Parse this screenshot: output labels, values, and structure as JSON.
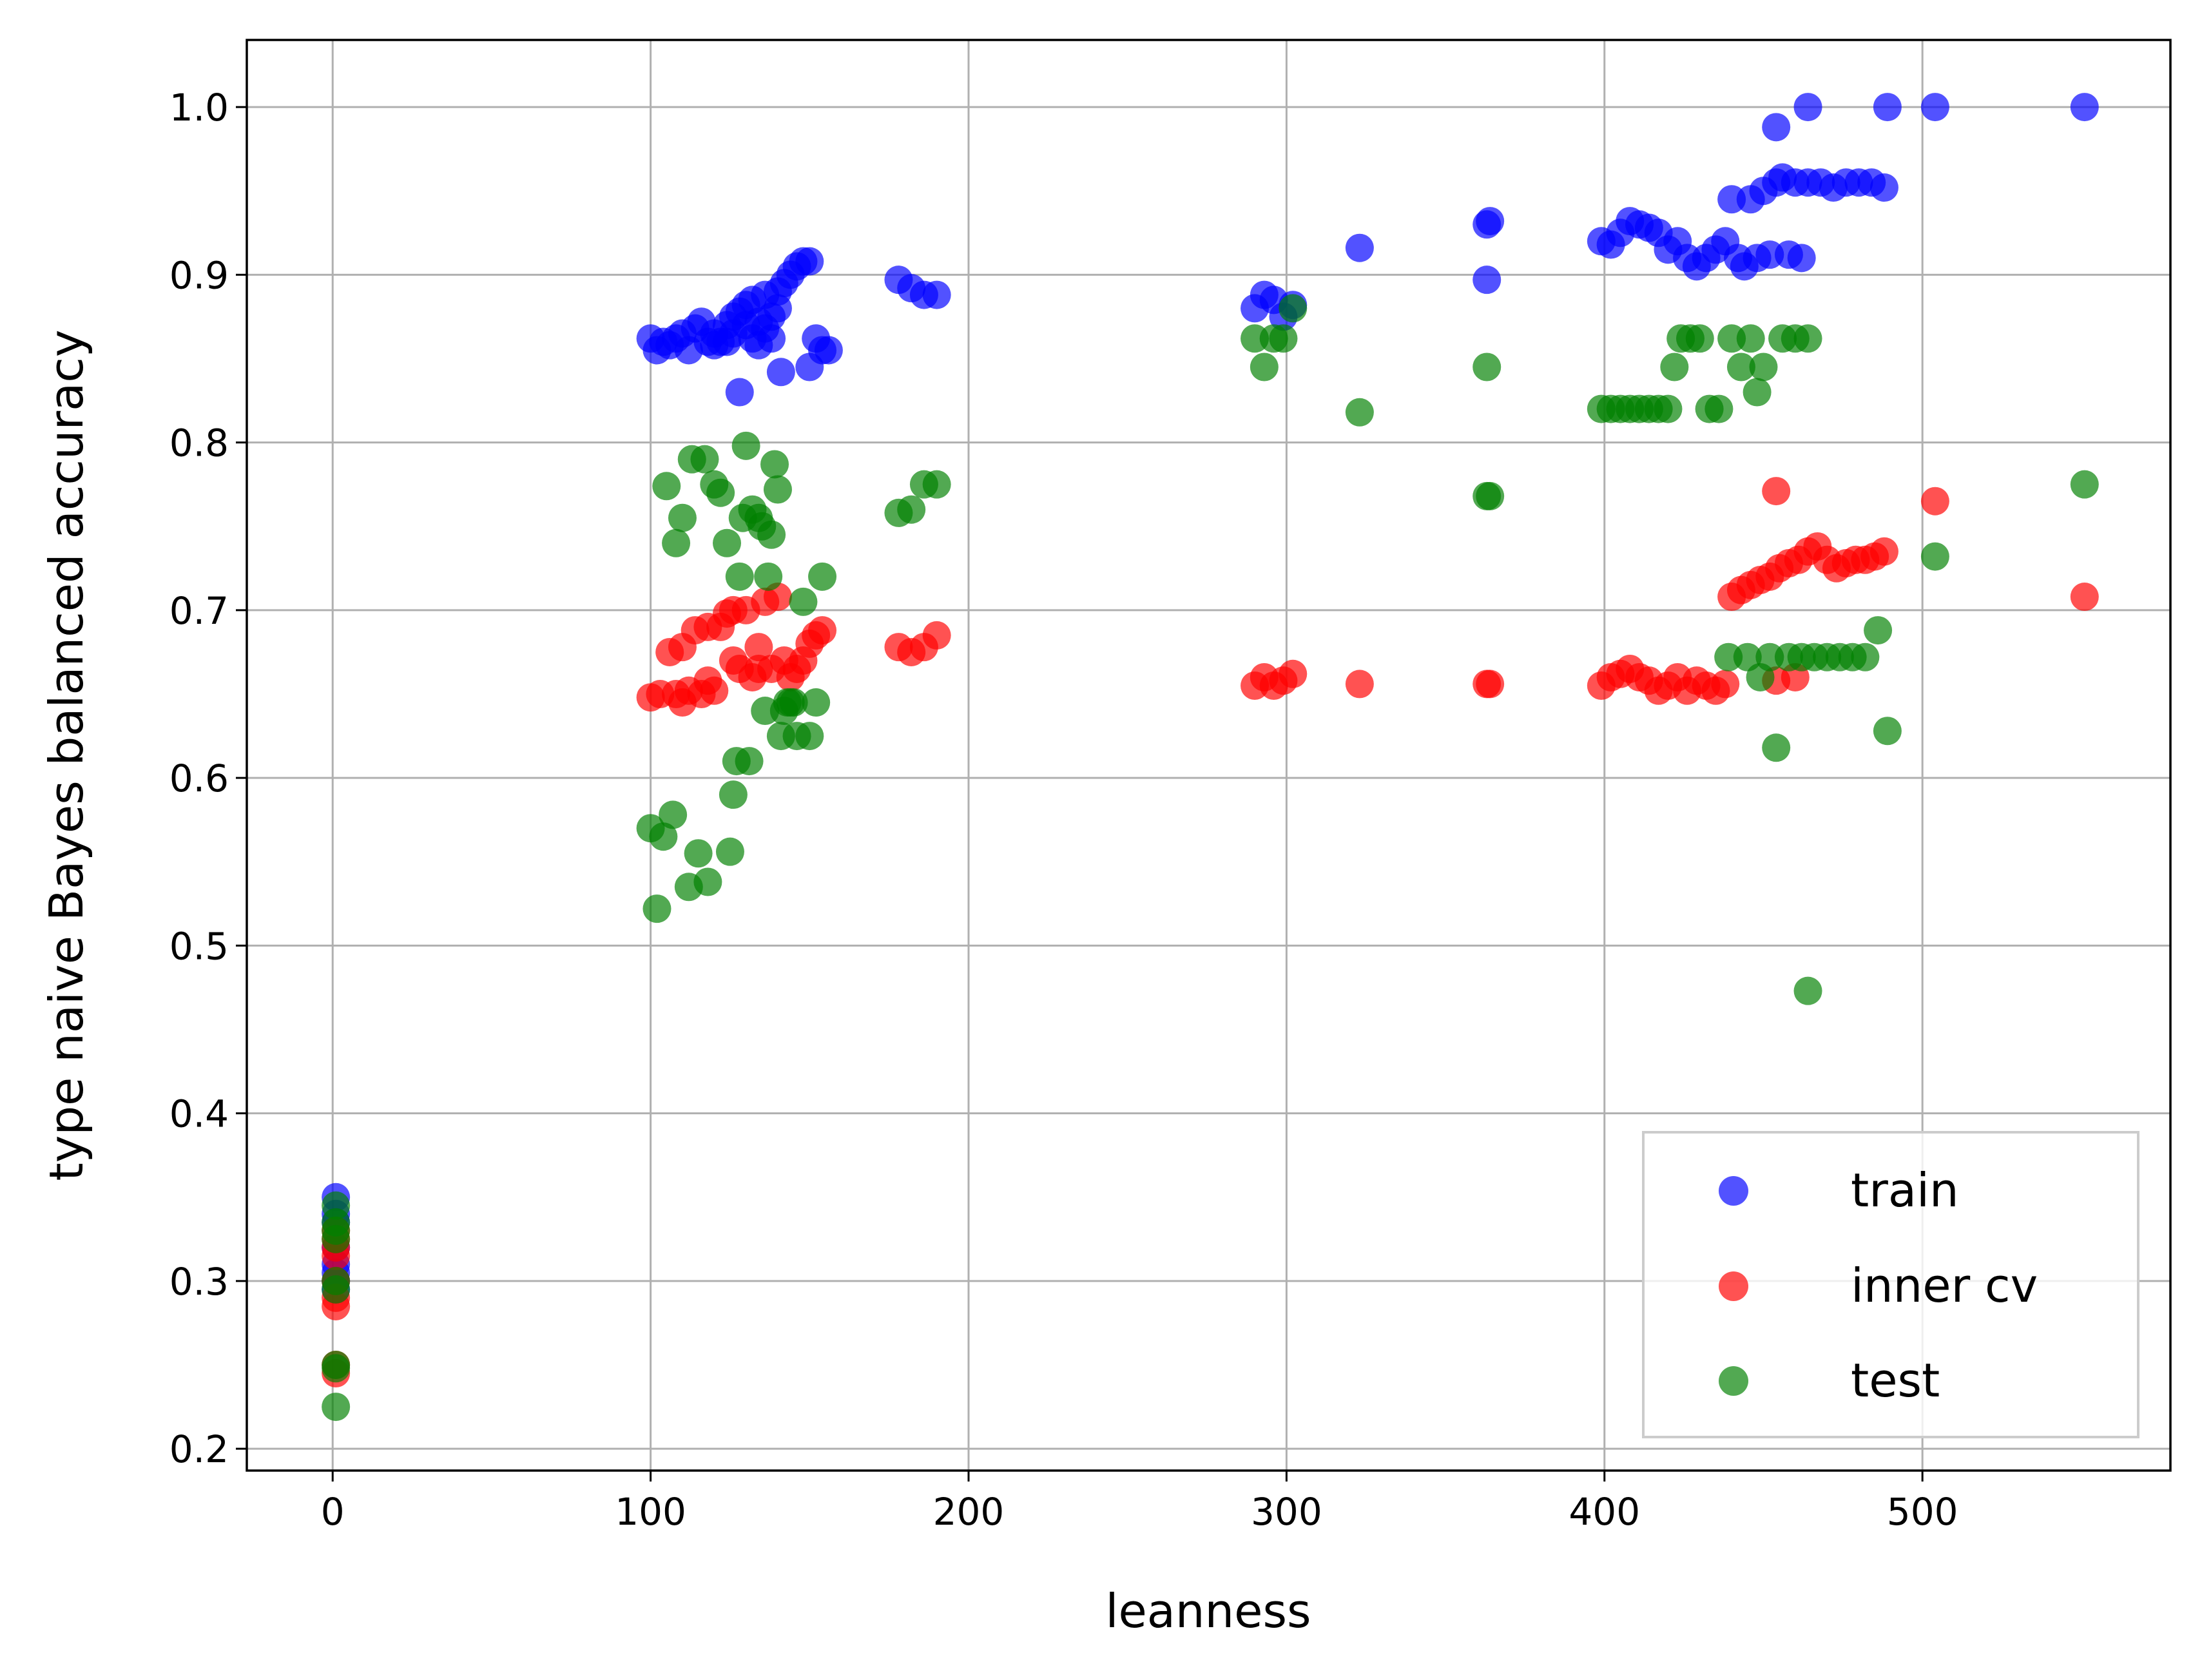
{
  "chart_data": {
    "type": "scatter",
    "title": "",
    "xlabel": "leanness",
    "ylabel": "type naive Bayes balanced accuracy",
    "xlim": [
      -27,
      578
    ],
    "ylim": [
      0.187,
      1.04
    ],
    "xticks": [
      0,
      100,
      200,
      300,
      400,
      500
    ],
    "yticks": [
      0.2,
      0.3,
      0.4,
      0.5,
      0.6,
      0.7,
      0.8,
      0.9,
      1.0
    ],
    "xtick_labels": [
      "0",
      "100",
      "200",
      "300",
      "400",
      "500"
    ],
    "ytick_labels": [
      "0.2",
      "0.3",
      "0.4",
      "0.5",
      "0.6",
      "0.7",
      "0.8",
      "0.9",
      "1.0"
    ],
    "grid": true,
    "legend_position": "lower-right",
    "series": [
      {
        "name": "train",
        "color": "#0000ff",
        "points": [
          [
            1,
            0.35
          ],
          [
            1,
            0.34
          ],
          [
            1,
            0.335
          ],
          [
            1,
            0.32
          ],
          [
            1,
            0.31
          ],
          [
            1,
            0.305
          ],
          [
            1,
            0.3
          ],
          [
            1,
            0.295
          ],
          [
            100,
            0.862
          ],
          [
            102,
            0.855
          ],
          [
            104,
            0.86
          ],
          [
            106,
            0.858
          ],
          [
            108,
            0.862
          ],
          [
            110,
            0.865
          ],
          [
            112,
            0.855
          ],
          [
            114,
            0.868
          ],
          [
            116,
            0.872
          ],
          [
            118,
            0.86
          ],
          [
            120,
            0.865
          ],
          [
            122,
            0.86
          ],
          [
            124,
            0.87
          ],
          [
            126,
            0.875
          ],
          [
            128,
            0.878
          ],
          [
            130,
            0.882
          ],
          [
            132,
            0.885
          ],
          [
            134,
            0.872
          ],
          [
            136,
            0.888
          ],
          [
            138,
            0.875
          ],
          [
            140,
            0.89
          ],
          [
            142,
            0.895
          ],
          [
            144,
            0.9
          ],
          [
            146,
            0.905
          ],
          [
            148,
            0.908
          ],
          [
            150,
            0.908
          ],
          [
            152,
            0.862
          ],
          [
            154,
            0.855
          ],
          [
            156,
            0.855
          ],
          [
            141,
            0.842
          ],
          [
            128,
            0.83
          ],
          [
            124,
            0.86
          ],
          [
            132,
            0.862
          ],
          [
            136,
            0.868
          ],
          [
            140,
            0.88
          ],
          [
            120,
            0.858
          ],
          [
            126,
            0.865
          ],
          [
            130,
            0.87
          ],
          [
            134,
            0.858
          ],
          [
            138,
            0.862
          ],
          [
            150,
            0.845
          ],
          [
            178,
            0.897
          ],
          [
            182,
            0.892
          ],
          [
            186,
            0.888
          ],
          [
            190,
            0.888
          ],
          [
            290,
            0.88
          ],
          [
            293,
            0.888
          ],
          [
            296,
            0.885
          ],
          [
            299,
            0.875
          ],
          [
            302,
            0.882
          ],
          [
            323,
            0.916
          ],
          [
            363,
            0.93
          ],
          [
            364,
            0.932
          ],
          [
            363,
            0.897
          ],
          [
            399,
            0.92
          ],
          [
            402,
            0.918
          ],
          [
            405,
            0.925
          ],
          [
            408,
            0.932
          ],
          [
            411,
            0.93
          ],
          [
            414,
            0.928
          ],
          [
            417,
            0.925
          ],
          [
            420,
            0.915
          ],
          [
            423,
            0.92
          ],
          [
            426,
            0.91
          ],
          [
            429,
            0.905
          ],
          [
            432,
            0.91
          ],
          [
            435,
            0.915
          ],
          [
            438,
            0.92
          ],
          [
            440,
            0.945
          ],
          [
            442,
            0.91
          ],
          [
            444,
            0.905
          ],
          [
            446,
            0.945
          ],
          [
            448,
            0.91
          ],
          [
            450,
            0.95
          ],
          [
            452,
            0.912
          ],
          [
            454,
            0.955
          ],
          [
            456,
            0.958
          ],
          [
            458,
            0.912
          ],
          [
            460,
            0.955
          ],
          [
            462,
            0.91
          ],
          [
            464,
            0.955
          ],
          [
            468,
            0.955
          ],
          [
            472,
            0.952
          ],
          [
            476,
            0.955
          ],
          [
            480,
            0.955
          ],
          [
            484,
            0.955
          ],
          [
            488,
            0.952
          ],
          [
            454,
            0.988
          ],
          [
            464,
            1.0
          ],
          [
            489,
            1.0
          ],
          [
            504,
            1.0
          ],
          [
            551,
            1.0
          ]
        ]
      },
      {
        "name": "inner cv",
        "color": "#ff0000",
        "points": [
          [
            1,
            0.33
          ],
          [
            1,
            0.325
          ],
          [
            1,
            0.32
          ],
          [
            1,
            0.315
          ],
          [
            1,
            0.3
          ],
          [
            1,
            0.29
          ],
          [
            1,
            0.285
          ],
          [
            1,
            0.25
          ],
          [
            1,
            0.245
          ],
          [
            100,
            0.648
          ],
          [
            103,
            0.65
          ],
          [
            106,
            0.675
          ],
          [
            108,
            0.65
          ],
          [
            110,
            0.678
          ],
          [
            112,
            0.652
          ],
          [
            114,
            0.688
          ],
          [
            116,
            0.65
          ],
          [
            118,
            0.69
          ],
          [
            120,
            0.652
          ],
          [
            122,
            0.69
          ],
          [
            124,
            0.698
          ],
          [
            126,
            0.7
          ],
          [
            128,
            0.665
          ],
          [
            130,
            0.7
          ],
          [
            132,
            0.66
          ],
          [
            134,
            0.665
          ],
          [
            136,
            0.705
          ],
          [
            138,
            0.665
          ],
          [
            140,
            0.708
          ],
          [
            142,
            0.67
          ],
          [
            144,
            0.66
          ],
          [
            146,
            0.665
          ],
          [
            148,
            0.67
          ],
          [
            150,
            0.68
          ],
          [
            152,
            0.685
          ],
          [
            154,
            0.688
          ],
          [
            126,
            0.67
          ],
          [
            118,
            0.658
          ],
          [
            110,
            0.645
          ],
          [
            134,
            0.678
          ],
          [
            178,
            0.678
          ],
          [
            182,
            0.675
          ],
          [
            186,
            0.678
          ],
          [
            190,
            0.685
          ],
          [
            290,
            0.655
          ],
          [
            293,
            0.66
          ],
          [
            296,
            0.655
          ],
          [
            299,
            0.658
          ],
          [
            302,
            0.662
          ],
          [
            323,
            0.656
          ],
          [
            363,
            0.656
          ],
          [
            364,
            0.656
          ],
          [
            399,
            0.655
          ],
          [
            402,
            0.66
          ],
          [
            405,
            0.662
          ],
          [
            408,
            0.665
          ],
          [
            411,
            0.66
          ],
          [
            414,
            0.658
          ],
          [
            417,
            0.652
          ],
          [
            420,
            0.655
          ],
          [
            423,
            0.66
          ],
          [
            426,
            0.652
          ],
          [
            429,
            0.658
          ],
          [
            432,
            0.655
          ],
          [
            435,
            0.652
          ],
          [
            438,
            0.656
          ],
          [
            440,
            0.708
          ],
          [
            443,
            0.712
          ],
          [
            446,
            0.715
          ],
          [
            449,
            0.718
          ],
          [
            452,
            0.72
          ],
          [
            454,
            0.658
          ],
          [
            455,
            0.725
          ],
          [
            458,
            0.728
          ],
          [
            460,
            0.66
          ],
          [
            461,
            0.73
          ],
          [
            464,
            0.735
          ],
          [
            467,
            0.738
          ],
          [
            470,
            0.73
          ],
          [
            473,
            0.725
          ],
          [
            476,
            0.728
          ],
          [
            479,
            0.73
          ],
          [
            482,
            0.73
          ],
          [
            485,
            0.732
          ],
          [
            488,
            0.735
          ],
          [
            454,
            0.771
          ],
          [
            504,
            0.765
          ],
          [
            551,
            0.708
          ]
        ]
      },
      {
        "name": "test",
        "color": "#008000",
        "points": [
          [
            1,
            0.345
          ],
          [
            1,
            0.335
          ],
          [
            1,
            0.33
          ],
          [
            1,
            0.325
          ],
          [
            1,
            0.3
          ],
          [
            1,
            0.295
          ],
          [
            1,
            0.25
          ],
          [
            1,
            0.248
          ],
          [
            1,
            0.225
          ],
          [
            100,
            0.57
          ],
          [
            102,
            0.522
          ],
          [
            104,
            0.565
          ],
          [
            105,
            0.774
          ],
          [
            107,
            0.578
          ],
          [
            108,
            0.74
          ],
          [
            110,
            0.755
          ],
          [
            112,
            0.535
          ],
          [
            113,
            0.79
          ],
          [
            115,
            0.555
          ],
          [
            117,
            0.79
          ],
          [
            118,
            0.538
          ],
          [
            120,
            0.775
          ],
          [
            122,
            0.77
          ],
          [
            124,
            0.74
          ],
          [
            125,
            0.556
          ],
          [
            126,
            0.59
          ],
          [
            127,
            0.61
          ],
          [
            128,
            0.72
          ],
          [
            129,
            0.755
          ],
          [
            130,
            0.798
          ],
          [
            131,
            0.61
          ],
          [
            132,
            0.76
          ],
          [
            134,
            0.755
          ],
          [
            135,
            0.75
          ],
          [
            136,
            0.64
          ],
          [
            137,
            0.72
          ],
          [
            138,
            0.745
          ],
          [
            139,
            0.787
          ],
          [
            140,
            0.772
          ],
          [
            141,
            0.625
          ],
          [
            142,
            0.64
          ],
          [
            143,
            0.645
          ],
          [
            144,
            0.645
          ],
          [
            145,
            0.645
          ],
          [
            146,
            0.625
          ],
          [
            148,
            0.705
          ],
          [
            150,
            0.625
          ],
          [
            152,
            0.645
          ],
          [
            154,
            0.72
          ],
          [
            178,
            0.758
          ],
          [
            182,
            0.76
          ],
          [
            186,
            0.775
          ],
          [
            190,
            0.775
          ],
          [
            290,
            0.862
          ],
          [
            293,
            0.845
          ],
          [
            296,
            0.862
          ],
          [
            299,
            0.862
          ],
          [
            302,
            0.88
          ],
          [
            323,
            0.818
          ],
          [
            363,
            0.845
          ],
          [
            363,
            0.768
          ],
          [
            364,
            0.768
          ],
          [
            399,
            0.82
          ],
          [
            402,
            0.82
          ],
          [
            405,
            0.82
          ],
          [
            408,
            0.82
          ],
          [
            411,
            0.82
          ],
          [
            414,
            0.82
          ],
          [
            417,
            0.82
          ],
          [
            420,
            0.82
          ],
          [
            422,
            0.845
          ],
          [
            424,
            0.862
          ],
          [
            427,
            0.862
          ],
          [
            430,
            0.862
          ],
          [
            433,
            0.82
          ],
          [
            436,
            0.82
          ],
          [
            439,
            0.672
          ],
          [
            440,
            0.862
          ],
          [
            443,
            0.845
          ],
          [
            445,
            0.672
          ],
          [
            446,
            0.862
          ],
          [
            448,
            0.83
          ],
          [
            449,
            0.66
          ],
          [
            450,
            0.845
          ],
          [
            452,
            0.672
          ],
          [
            454,
            0.618
          ],
          [
            456,
            0.862
          ],
          [
            458,
            0.672
          ],
          [
            460,
            0.862
          ],
          [
            462,
            0.672
          ],
          [
            464,
            0.862
          ],
          [
            466,
            0.672
          ],
          [
            470,
            0.672
          ],
          [
            474,
            0.672
          ],
          [
            478,
            0.672
          ],
          [
            482,
            0.672
          ],
          [
            486,
            0.688
          ],
          [
            489,
            0.628
          ],
          [
            464,
            0.473
          ],
          [
            504,
            0.732
          ],
          [
            551,
            0.775
          ]
        ]
      }
    ]
  }
}
